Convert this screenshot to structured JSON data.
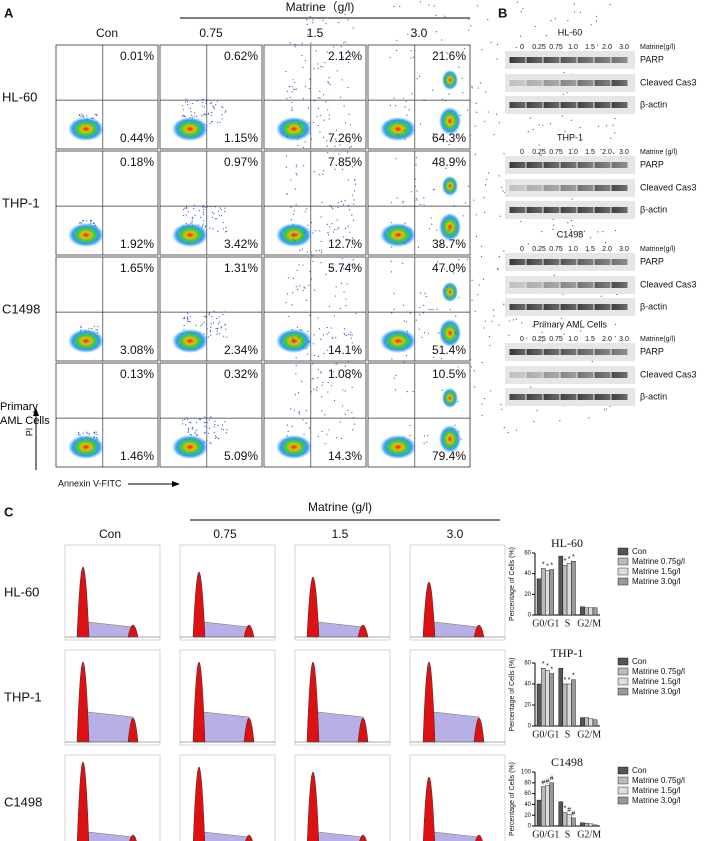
{
  "panel_a": {
    "label": "A",
    "treatment": "Matrine（g/l)",
    "doses": [
      "Con",
      "0.75",
      "1.5",
      "3.0"
    ],
    "y_axis": "PI",
    "x_axis": "Annexin V-FITC",
    "rows": [
      {
        "name": "HL-60",
        "upper_right": [
          "0.01%",
          "0.62%",
          "2.12%",
          "21.6%"
        ],
        "lower_right": [
          "0.44%",
          "1.15%",
          "7.26%",
          "64.3%"
        ]
      },
      {
        "name": "THP-1",
        "upper_right": [
          "0.18%",
          "0.97%",
          "7.85%",
          "48.9%"
        ],
        "lower_right": [
          "1.92%",
          "3.42%",
          "12.7%",
          "38.7%"
        ]
      },
      {
        "name": "C1498",
        "upper_right": [
          "1.65%",
          "1.31%",
          "5.74%",
          "47.0%"
        ],
        "lower_right": [
          "3.08%",
          "2.34%",
          "14.1%",
          "51.4%"
        ]
      },
      {
        "name": "Primary AML Cells",
        "upper_right": [
          "0.13%",
          "0.32%",
          "1.08%",
          "10.5%"
        ],
        "lower_right": [
          "1.46%",
          "5.09%",
          "14.3%",
          "79.4%"
        ]
      }
    ]
  },
  "panel_b": {
    "label": "B",
    "blots": [
      {
        "title": "HL-60",
        "lanes": [
          "0",
          "0.25",
          "0.75",
          "1.0",
          "1.5",
          "2.0",
          "3.0"
        ],
        "unit": "Matrine(g/l)",
        "bands": [
          "PARP",
          "Cleaved Cas3",
          "β-actin"
        ]
      },
      {
        "title": "THP-1",
        "lanes": [
          "0",
          "0.25",
          "0.75",
          "1.0",
          "1.5",
          "2.0",
          "3.0"
        ],
        "unit": "Matrine (g/l)",
        "bands": [
          "PARP",
          "Cleaved Cas3",
          "β-actin"
        ]
      },
      {
        "title": "C1498",
        "lanes": [
          "0",
          "0.25",
          "0.75",
          "1.0",
          "1.5",
          "2.0",
          "3.0"
        ],
        "unit": "Matrine(g/l)",
        "bands": [
          "PARP",
          "Cleaved Cas3",
          "β-actin"
        ]
      },
      {
        "title": "Primary AML Cells",
        "lanes": [
          "0",
          "0.25",
          "0.75",
          "1.0",
          "1.5",
          "2.0",
          "3.0"
        ],
        "unit": "Matrine(g/l)",
        "bands": [
          "PARP",
          "Cleaved Cas3",
          "β-actin"
        ]
      }
    ]
  },
  "panel_c": {
    "label": "C",
    "treatment": "Matrine  (g/l)",
    "doses": [
      "Con",
      "0.75",
      "1.5",
      "3.0"
    ],
    "rows": [
      "HL-60",
      "THP-1",
      "C1498"
    ],
    "charts": [
      {
        "type": "bar",
        "title": "HL-60",
        "ylabel": "Percentage of Cells (%)",
        "categories": [
          "G0/G1",
          "S",
          "G2/M"
        ],
        "ylim": [
          0,
          60
        ],
        "yticks": [
          0,
          20,
          40,
          60
        ],
        "series": [
          {
            "name": "Con",
            "color": "#555555",
            "values": [
              35,
              57,
              8
            ],
            "marks": [
              null,
              null,
              null
            ]
          },
          {
            "name": "Matrine 0.75g/l",
            "color": "#bbbbbb",
            "values": [
              45,
              48,
              7
            ],
            "marks": [
              "*",
              "*",
              null
            ]
          },
          {
            "name": "Matrine 1.5g/l",
            "color": "#dddddd",
            "values": [
              43,
              50,
              7
            ],
            "marks": [
              "*",
              "*",
              null
            ]
          },
          {
            "name": "Matrine 3.0g/l",
            "color": "#999999",
            "values": [
              44,
              52,
              7
            ],
            "marks": [
              "*",
              "*",
              null
            ]
          }
        ]
      },
      {
        "type": "bar",
        "title": "THP-1",
        "ylabel": "Percentage of Cells (%)",
        "categories": [
          "G0/G1",
          "S",
          "G2/M"
        ],
        "ylim": [
          0,
          60
        ],
        "yticks": [
          0,
          20,
          40,
          60
        ],
        "series": [
          {
            "name": "Con",
            "color": "#555555",
            "values": [
              40,
              55,
              8
            ],
            "marks": [
              null,
              null,
              null
            ]
          },
          {
            "name": "Matrine 0.75g/l",
            "color": "#bbbbbb",
            "values": [
              55,
              40,
              8
            ],
            "marks": [
              "*",
              "*",
              null
            ]
          },
          {
            "name": "Matrine 1.5g/l",
            "color": "#dddddd",
            "values": [
              53,
              40,
              7
            ],
            "marks": [
              "*",
              "*",
              null
            ]
          },
          {
            "name": "Matrine 3.0g/l",
            "color": "#999999",
            "values": [
              50,
              44,
              6
            ],
            "marks": [
              "*",
              "*",
              null
            ]
          }
        ]
      },
      {
        "type": "bar",
        "title": "C1498",
        "ylabel": "Percentage of Cells (%)",
        "categories": [
          "G0/G1",
          "S",
          "G2/M"
        ],
        "ylim": [
          0,
          100
        ],
        "yticks": [
          0,
          20,
          40,
          60,
          80,
          100
        ],
        "series": [
          {
            "name": "Con",
            "color": "#555555",
            "values": [
              48,
              45,
              6
            ],
            "marks": [
              null,
              null,
              null
            ]
          },
          {
            "name": "Matrine 0.75g/l",
            "color": "#bbbbbb",
            "values": [
              73,
              25,
              5
            ],
            "marks": [
              "#",
              "*",
              null
            ]
          },
          {
            "name": "Matrine 1.5g/l",
            "color": "#dddddd",
            "values": [
              75,
              22,
              4
            ],
            "marks": [
              "#",
              "#",
              null
            ]
          },
          {
            "name": "Matrine 3.0g/l",
            "color": "#999999",
            "values": [
              80,
              15,
              2
            ],
            "marks": [
              "#",
              "#",
              null
            ]
          }
        ]
      }
    ]
  }
}
